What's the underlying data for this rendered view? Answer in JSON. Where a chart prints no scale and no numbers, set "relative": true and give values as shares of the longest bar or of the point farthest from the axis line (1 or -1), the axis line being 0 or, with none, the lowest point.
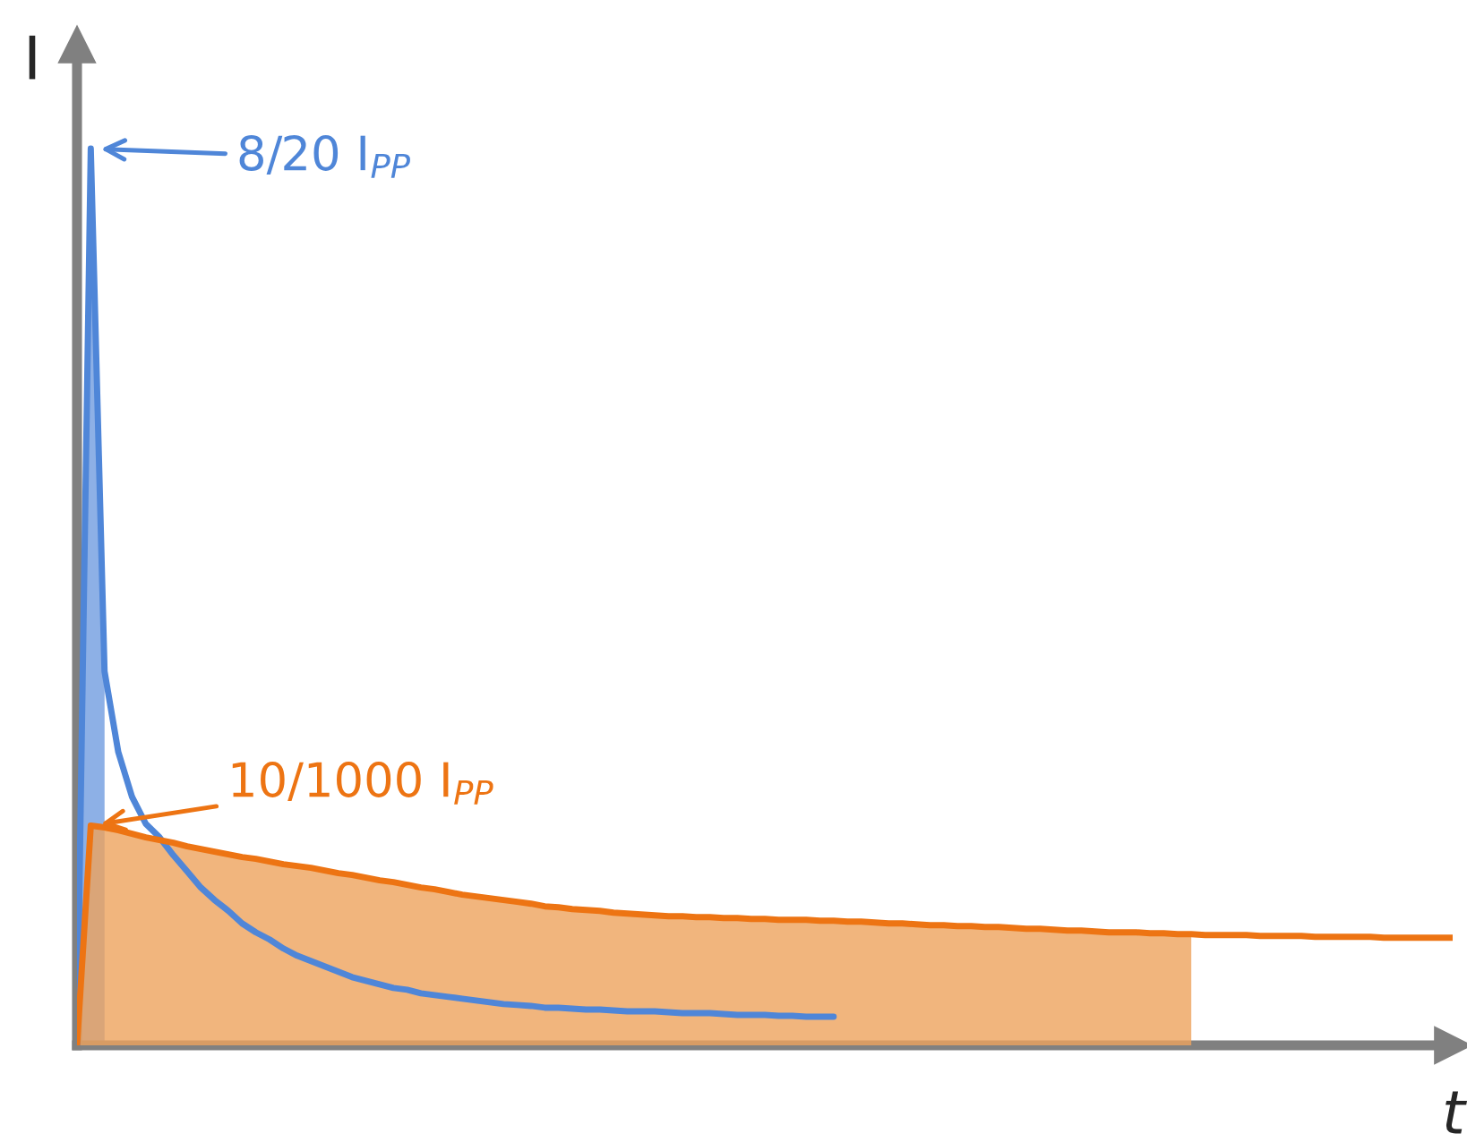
{
  "chart_data": {
    "type": "line",
    "xlabel": "t",
    "ylabel": "I",
    "relative": true,
    "legend": "top left",
    "categories": [
      null,
      null,
      null,
      null,
      null,
      null,
      null,
      null,
      null,
      null,
      null,
      null,
      null,
      null,
      null,
      null,
      null,
      null,
      null,
      null,
      null,
      null,
      null,
      null,
      null,
      null,
      null,
      null,
      null,
      null,
      null,
      null,
      null,
      null,
      null,
      null,
      null,
      null,
      null,
      null,
      null,
      null,
      null,
      null,
      null,
      null,
      null,
      null,
      null,
      null,
      null,
      null,
      null,
      null,
      null,
      null,
      null,
      null,
      null,
      null,
      null,
      null,
      null,
      null,
      null,
      null,
      null,
      null,
      null,
      null,
      null,
      null,
      null,
      null,
      null,
      null,
      null,
      null,
      null,
      null,
      null,
      null,
      null,
      null,
      null,
      null,
      null,
      null,
      null,
      null,
      null,
      null,
      null,
      null,
      null,
      null,
      null,
      null,
      null,
      null,
      null
    ],
    "series": [
      {
        "type": "area",
        "color": "#8db0e6",
        "values": [
          0,
          1.0,
          0.417,
          null,
          null,
          null,
          null,
          null,
          null,
          null,
          null,
          null,
          null,
          null,
          null,
          null,
          null,
          null,
          null,
          null,
          null,
          null,
          null,
          null,
          null,
          null,
          null,
          null,
          null,
          null,
          null,
          null,
          null,
          null,
          null,
          null,
          null,
          null,
          null,
          null,
          null,
          null,
          null,
          null,
          null,
          null,
          null,
          null,
          null,
          null,
          null,
          null,
          null,
          null,
          null,
          null,
          null,
          null,
          null,
          null,
          null,
          null,
          null,
          null,
          null,
          null,
          null,
          null,
          null,
          null,
          null,
          null,
          null,
          null,
          null,
          null,
          null,
          null,
          null,
          null,
          null,
          null,
          null,
          null,
          null,
          null,
          null,
          null,
          null,
          null,
          null,
          null,
          null,
          null,
          null,
          null,
          null,
          null,
          null,
          null,
          null
        ]
      },
      {
        "type": "line",
        "name": "8/20 I$_{PP}$",
        "color": "#4f86d8",
        "values": [
          0,
          1.0,
          0.417,
          0.327,
          0.277,
          0.247,
          0.232,
          0.212,
          0.194,
          0.176,
          0.162,
          0.15,
          0.136,
          0.126,
          0.118,
          0.108,
          0.1,
          0.094,
          0.088,
          0.082,
          0.076,
          0.072,
          0.068,
          0.064,
          0.062,
          0.058,
          0.056,
          0.054,
          0.052,
          0.05,
          0.048,
          0.046,
          0.045,
          0.044,
          0.042,
          0.042,
          0.041,
          0.04,
          0.04,
          0.039,
          0.038,
          0.038,
          0.038,
          0.037,
          0.036,
          0.036,
          0.036,
          0.035,
          0.034,
          0.034,
          0.034,
          0.033,
          0.033,
          0.032,
          0.032,
          0.032,
          null,
          null,
          null,
          null,
          null,
          null,
          null,
          null,
          null,
          null,
          null,
          null,
          null,
          null,
          null,
          null,
          null,
          null,
          null,
          null,
          null,
          null,
          null,
          null,
          null,
          null,
          null,
          null,
          null,
          null,
          null,
          null,
          null,
          null,
          null,
          null,
          null,
          null,
          null,
          null,
          null,
          null,
          null,
          null,
          null
        ]
      },
      {
        "type": "area",
        "color": "#eea35c",
        "values": [
          0,
          0.245,
          0.243,
          0.24,
          0.236,
          0.232,
          0.229,
          0.226,
          0.222,
          0.219,
          0.216,
          0.213,
          0.21,
          0.208,
          0.205,
          0.202,
          0.2,
          0.198,
          0.195,
          0.192,
          0.19,
          0.187,
          0.184,
          0.182,
          0.179,
          0.176,
          0.174,
          0.171,
          0.168,
          0.166,
          0.164,
          0.162,
          0.16,
          0.158,
          0.155,
          0.154,
          0.152,
          0.151,
          0.15,
          0.148,
          0.147,
          0.146,
          0.145,
          0.144,
          0.144,
          0.143,
          0.143,
          0.142,
          0.142,
          0.141,
          0.141,
          0.14,
          0.14,
          0.14,
          0.139,
          0.139,
          0.138,
          0.138,
          0.137,
          0.136,
          0.136,
          0.135,
          0.134,
          0.134,
          0.133,
          0.133,
          0.132,
          0.132,
          0.131,
          0.13,
          0.13,
          0.129,
          0.128,
          0.128,
          0.127,
          0.126,
          0.126,
          0.126,
          0.125,
          0.125,
          0.124,
          0.124,
          null,
          null,
          null,
          null,
          null,
          null,
          null,
          null,
          null,
          null,
          null,
          null,
          null,
          null,
          null,
          null,
          null,
          null,
          null
        ]
      },
      {
        "type": "line",
        "name": "10/1000 I$_{PP}$",
        "color": "#ed7413",
        "values": [
          0,
          0.245,
          0.243,
          0.24,
          0.236,
          0.232,
          0.229,
          0.226,
          0.222,
          0.219,
          0.216,
          0.213,
          0.21,
          0.208,
          0.205,
          0.202,
          0.2,
          0.198,
          0.195,
          0.192,
          0.19,
          0.187,
          0.184,
          0.182,
          0.179,
          0.176,
          0.174,
          0.171,
          0.168,
          0.166,
          0.164,
          0.162,
          0.16,
          0.158,
          0.155,
          0.154,
          0.152,
          0.151,
          0.15,
          0.148,
          0.147,
          0.146,
          0.145,
          0.144,
          0.144,
          0.143,
          0.143,
          0.142,
          0.142,
          0.141,
          0.141,
          0.14,
          0.14,
          0.14,
          0.139,
          0.139,
          0.138,
          0.138,
          0.137,
          0.136,
          0.136,
          0.135,
          0.134,
          0.134,
          0.133,
          0.133,
          0.132,
          0.132,
          0.131,
          0.13,
          0.13,
          0.129,
          0.128,
          0.128,
          0.127,
          0.126,
          0.126,
          0.126,
          0.125,
          0.125,
          0.124,
          0.124,
          0.123,
          0.123,
          0.123,
          0.123,
          0.122,
          0.122,
          0.122,
          0.122,
          0.121,
          0.121,
          0.121,
          0.121,
          0.121,
          0.12,
          0.12,
          0.12,
          0.12,
          0.12,
          0.12
        ]
      }
    ]
  }
}
